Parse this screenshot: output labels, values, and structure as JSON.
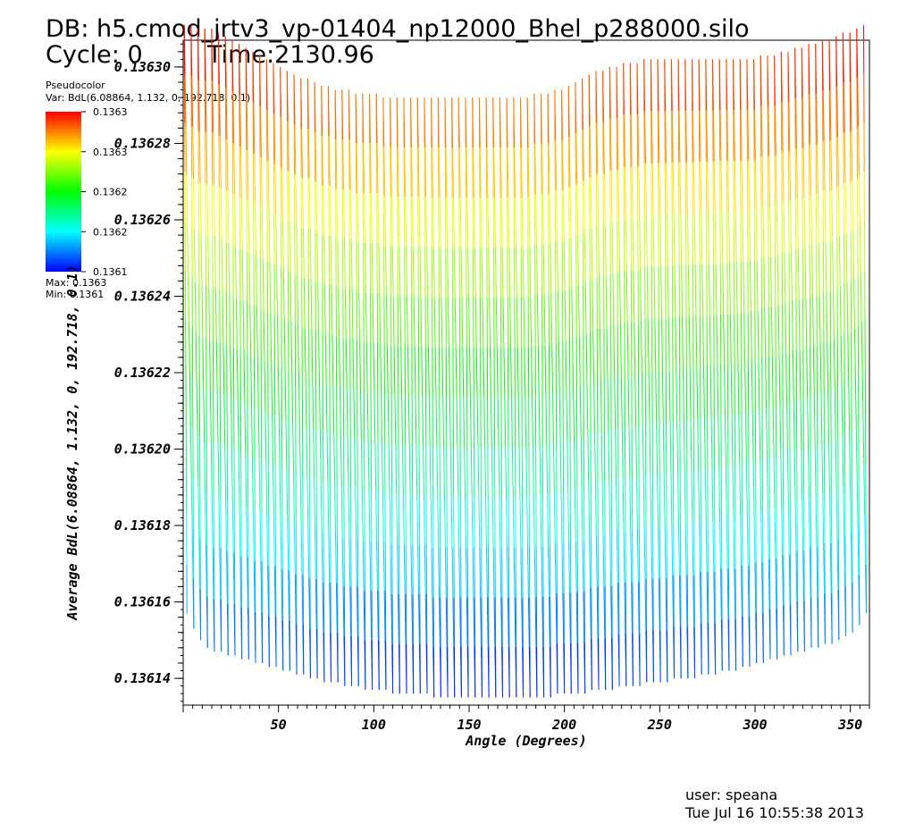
{
  "header": {
    "db": "DB: h5.cmod_jrtv3_vp-01404_np12000_Bhel_p288000.silo",
    "cycle": "Cycle: 0",
    "time": "Time:2130.96"
  },
  "legend": {
    "type": "Pseudocolor",
    "var": "Var: BdL(6.08864, 1.132, 0, 192.718, 0.1)",
    "ticks": [
      "0.1363",
      "0.1363",
      "0.1362",
      "0.1362",
      "0.1361"
    ],
    "max": "Max: 0.1363",
    "min": "Min: 0.1361",
    "colors": [
      "#ff0000",
      "#ffff00",
      "#00ff00",
      "#00ffff",
      "#0000ff"
    ]
  },
  "footer": {
    "user": "user: speana",
    "date": "Tue Jul 16 10:55:38 2013"
  },
  "chart_data": {
    "type": "line",
    "xlabel": "Angle (Degrees)",
    "ylabel": "Average BdL(6.08864, 1.132, 0, 192.718, 0.1)",
    "xlim": [
      0,
      360
    ],
    "ylim": [
      0.136133,
      0.136307
    ],
    "x_ticks": [
      "50",
      "100",
      "150",
      "200",
      "250",
      "300",
      "350"
    ],
    "y_ticks": [
      "0.13614",
      "0.13616",
      "0.13618",
      "0.13620",
      "0.13622",
      "0.13624",
      "0.13626",
      "0.13628",
      "0.13630"
    ],
    "colormap": "pseudocolor (blue→cyan→green→yellow→red)",
    "series": [
      {
        "x_start": 0,
        "x_step": 3.6,
        "peaks": [
          0.136311,
          0.136311,
          0.13631,
          0.13631,
          0.13631,
          0.136309,
          0.136308,
          0.136307,
          0.136306,
          0.136305,
          0.136304,
          0.136303,
          0.136302,
          0.136301,
          0.1363,
          0.136299,
          0.136298,
          0.136297,
          0.136297,
          0.136296,
          0.136295,
          0.136295,
          0.136294,
          0.136294,
          0.136294,
          0.136293,
          0.136293,
          0.136293,
          0.136293,
          0.136292,
          0.136292,
          0.136292,
          0.136292,
          0.136292,
          0.136292,
          0.136292,
          0.136292,
          0.136292,
          0.136292,
          0.136292,
          0.136292,
          0.136292,
          0.136292,
          0.136292,
          0.136292,
          0.136292,
          0.136292,
          0.136292,
          0.136292,
          0.136292,
          0.136292,
          0.136293,
          0.136293,
          0.136293,
          0.136294,
          0.136294,
          0.136295,
          0.136296,
          0.136297,
          0.136298,
          0.136299,
          0.136299,
          0.1363,
          0.1363,
          0.136301,
          0.136301,
          0.136301,
          0.136302,
          0.136302,
          0.136302,
          0.136302,
          0.136302,
          0.136302,
          0.136302,
          0.136302,
          0.136302,
          0.136302,
          0.136302,
          0.136302,
          0.136302,
          0.136302,
          0.136302,
          0.136302,
          0.136302,
          0.136303,
          0.136303,
          0.136303,
          0.136304,
          0.136304,
          0.136305,
          0.136305,
          0.136306,
          0.136306,
          0.136307,
          0.136307,
          0.136308,
          0.136309,
          0.136309,
          0.13631,
          0.136311
        ],
        "troughs": [
          0.136157,
          0.136153,
          0.13615,
          0.136148,
          0.136147,
          0.136147,
          0.136146,
          0.136146,
          0.136145,
          0.136145,
          0.136144,
          0.136144,
          0.136143,
          0.136143,
          0.136142,
          0.136142,
          0.136141,
          0.136141,
          0.13614,
          0.13614,
          0.136139,
          0.136139,
          0.136139,
          0.136138,
          0.136138,
          0.136138,
          0.136137,
          0.136137,
          0.136137,
          0.136137,
          0.136136,
          0.136136,
          0.136136,
          0.136136,
          0.136136,
          0.136136,
          0.136135,
          0.136135,
          0.136135,
          0.136135,
          0.136135,
          0.136135,
          0.136135,
          0.136135,
          0.136135,
          0.136135,
          0.136135,
          0.136135,
          0.136135,
          0.136135,
          0.136135,
          0.136135,
          0.136135,
          0.136135,
          0.136136,
          0.136136,
          0.136136,
          0.136136,
          0.136136,
          0.136137,
          0.136137,
          0.136137,
          0.136137,
          0.136138,
          0.136138,
          0.136138,
          0.136138,
          0.136139,
          0.136139,
          0.136139,
          0.136139,
          0.13614,
          0.13614,
          0.13614,
          0.13614,
          0.136141,
          0.136141,
          0.136141,
          0.136142,
          0.136142,
          0.136142,
          0.136143,
          0.136143,
          0.136144,
          0.136144,
          0.136145,
          0.136145,
          0.136146,
          0.136146,
          0.136147,
          0.136147,
          0.136148,
          0.136148,
          0.136149,
          0.136149,
          0.13615,
          0.136151,
          0.136152,
          0.136154,
          0.136157
        ]
      }
    ]
  }
}
